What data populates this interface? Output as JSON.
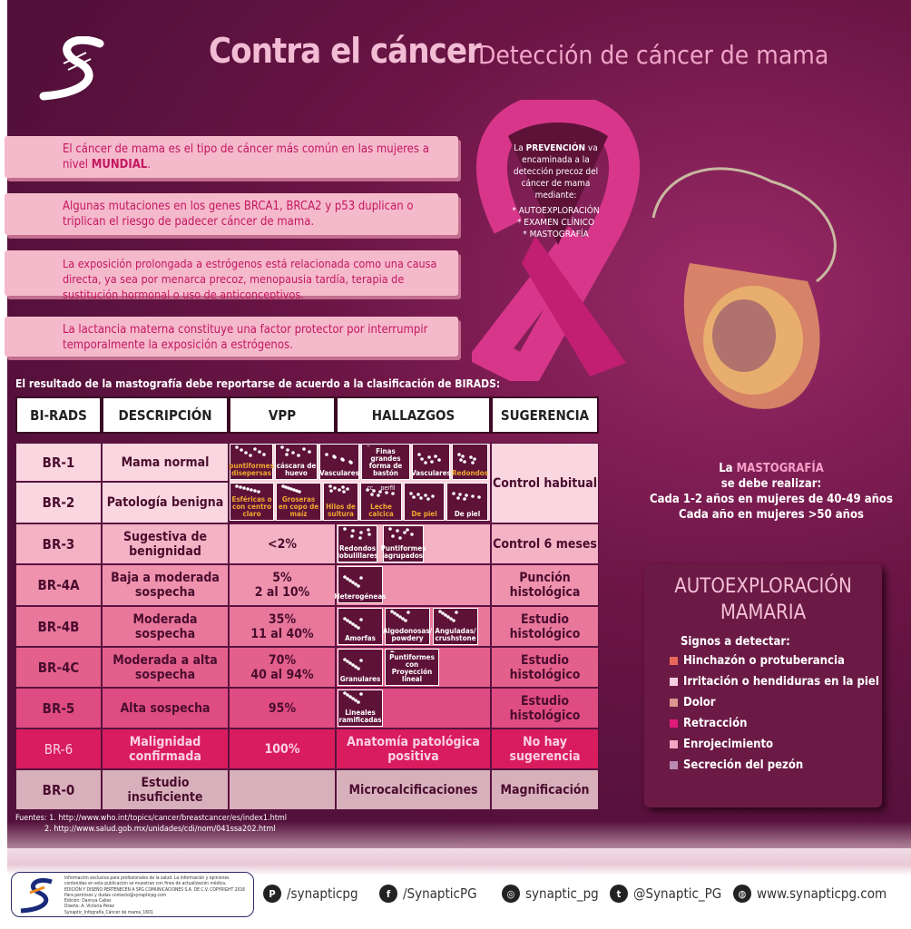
{
  "header": {
    "title": "Contra el cáncer",
    "subtitle": "Detección de cáncer de mama"
  },
  "info_boxes": [
    {
      "text": "El cáncer de mama es el tipo de cáncer más común en las mujeres a nivel ",
      "bold": "MUNDIAL",
      "after": "."
    },
    {
      "text": "Algunas mutaciones en los genes BRCA1, BRCA2 y p53 duplican o triplican el riesgo de padecer cáncer de mama."
    },
    {
      "text": "La exposición prolongada a estrógenos está relacionada como una causa directa, ya sea por menarca precoz, menopausia tardía, terapia de sustitución hormonal o uso de anticonceptivos."
    },
    {
      "text": "La lactancia materna constituye una factor protector por interrumpir temporalmente la exposición a estrógenos."
    }
  ],
  "ribbon": {
    "l1": "La ",
    "bold": "PREVENCIÓN",
    "l1b": " va encaminada a la detección precoz del cáncer de mama mediante:",
    "items": [
      "* AUTOEXPLORACIÓN",
      "* EXAMEN CLÍNICO",
      "* MASTOGRAFÍA"
    ]
  },
  "mastografia": {
    "pre": "La ",
    "bold": "MASTOGRAFÍA",
    "l2": "se debe realizar:",
    "l3": "Cada 1-2 años en mujeres de 40-49 años",
    "l4": "Cada año en mujeres >50 años"
  },
  "autoexploracion": {
    "title1": "AUTOEXPLORACIÓN",
    "title2": "MAMARIA",
    "signs_label": "Signos a detectar:",
    "signs": [
      {
        "label": "Hinchazón o protuberancia",
        "color": "#e8695a"
      },
      {
        "label": "Irritación o hendiduras en la piel",
        "color": "#f6cde0"
      },
      {
        "label": "Dolor",
        "color": "#d9978f"
      },
      {
        "label": "Retracción",
        "color": "#e0197a"
      },
      {
        "label": "Enrojecimiento",
        "color": "#f1a6c4"
      },
      {
        "label": "Secreción del pezón",
        "color": "#b98aaf"
      }
    ]
  },
  "table": {
    "caption": "El resultado de la mastografía debe reportarse de acuerdo a la clasificación de BIRADS:",
    "headers": [
      "BI-RADS",
      "DESCRIPCIÓN",
      "VPP",
      "HALLAZGOS",
      "SUGERENCIA"
    ],
    "rows": [
      {
        "birads": "BR-1",
        "desc": "Mama normal",
        "vpp": "",
        "hallazgos": "",
        "sugerencia": "Control habitual",
        "color": "#f9d6e0"
      },
      {
        "birads": "BR-2",
        "desc": "Patología benigna",
        "vpp": "",
        "hallazgos": "",
        "sugerencia": "",
        "color": "#f9d6e0"
      },
      {
        "birads": "BR-3",
        "desc": "Sugestiva de benignidad",
        "vpp": "<2%",
        "hallazgos": "",
        "sugerencia": "Control 6 meses",
        "color": "#f4b3c5"
      },
      {
        "birads": "BR-4A",
        "desc": "Baja a moderada sospecha",
        "vpp": "5%\n2 al 10%",
        "hallazgos": "",
        "sugerencia": "Punción histológica",
        "color": "#ef92ae"
      },
      {
        "birads": "BR-4B",
        "desc": "Moderada sospecha",
        "vpp": "35%\n11 al 40%",
        "hallazgos": "",
        "sugerencia": "Estudio histológico",
        "color": "#e9779c"
      },
      {
        "birads": "BR-4C",
        "desc": "Moderada a alta sospecha",
        "vpp": "70%\n40 al 94%",
        "hallazgos": "",
        "sugerencia": "Estudio histológico",
        "color": "#e4608c"
      },
      {
        "birads": "BR-5",
        "desc": "Alta sospecha",
        "vpp": "95%",
        "hallazgos": "",
        "sugerencia": "Estudio histológico",
        "color": "#df4c82"
      },
      {
        "birads": "BR-6",
        "desc": "Malignidad confirmada",
        "vpp": "100%",
        "hallazgos": "Anatomía patológica positiva",
        "sugerencia": "No hay sugerencia",
        "color": "#d91c5e"
      },
      {
        "birads": "BR-0",
        "desc": "Estudio insuficiente",
        "vpp": "",
        "hallazgos": "Microcalcificaciones",
        "sugerencia": "Magnificación",
        "color": "#d8b0bc"
      }
    ],
    "findings": {
      "br1": [
        {
          "label": "puntiformes disepersas",
          "orange": true
        },
        {
          "label": "cáscara de huevo"
        },
        {
          "label": "Vasculares"
        },
        {
          "label": "Finas grandes forma de bastón"
        },
        {
          "label": "Vasculares"
        },
        {
          "label": "Redondos",
          "orange": true
        }
      ],
      "br2": [
        {
          "label": "Esféricas o con centro claro",
          "orange": true
        },
        {
          "label": "Groseras en copo de maíz",
          "orange": true
        },
        {
          "label": "Hilos de sultura",
          "orange": true
        },
        {
          "label": "Leche calcica",
          "orange": true,
          "extra": "cc    perfil"
        },
        {
          "label": "De piel",
          "orange": true
        },
        {
          "label": "De piel"
        }
      ],
      "br3": [
        "Redondos lobulillares",
        "Puntiformes agrupados"
      ],
      "br4a": [
        "Heterogéneas"
      ],
      "br4b": [
        "Amorfas",
        "Algodonosas/ powdery",
        "Anguladas/ crushstone"
      ],
      "br4c": [
        "Granulares",
        "Puntiformes con Proyección lineal"
      ],
      "br5": [
        "Lineales ramificadas"
      ]
    }
  },
  "sources": {
    "l1": "Fuentes: 1. http://www.who.int/topics/cancer/breastcancer/es/index1.html",
    "l2": "2. http://www.salud.gob.mx/unidades/cdi/nom/041ssa202.html"
  },
  "disclaimer": [
    "Información exclusiva para profesionales de la salud. La información y opiniones contenidas en esta publicación se muestran con fines de actualización médica.",
    "EDICIÓN Y DISEÑO PERTENECEN A SPG COMUNICACIONES S.A. DE C.V. COPYRIGHT 2016",
    "Para permisos y dudas contacto@synapticpg.com",
    "Edición: Dannya Calles",
    "Diseño: A. Victoria Pérez",
    "Synaptic_Infografía_Cáncer de mama_1601"
  ],
  "social": [
    {
      "icon": "pinterest-icon",
      "glyph": "P",
      "label": "/synapticpg"
    },
    {
      "icon": "facebook-icon",
      "glyph": "f",
      "label": "/SynapticPG"
    },
    {
      "icon": "instagram-icon",
      "glyph": "◎",
      "label": "synaptic_pg"
    },
    {
      "icon": "twitter-icon",
      "glyph": "t",
      "label": "@Synaptic_PG"
    },
    {
      "icon": "globe-icon",
      "glyph": "◍",
      "label": "www.synapticpg.com"
    }
  ]
}
